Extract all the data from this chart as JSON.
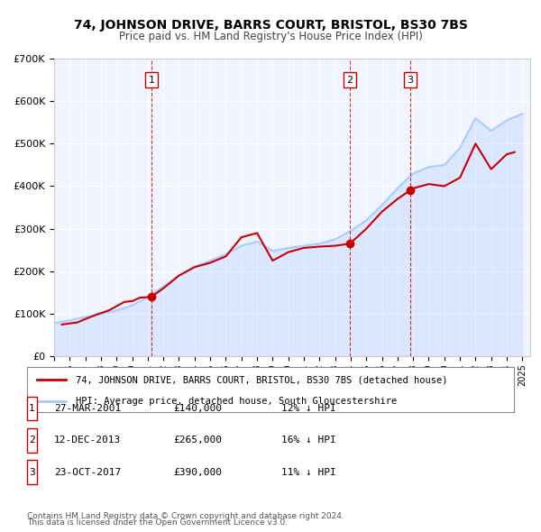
{
  "title": "74, JOHNSON DRIVE, BARRS COURT, BRISTOL, BS30 7BS",
  "subtitle": "Price paid vs. HM Land Registry's House Price Index (HPI)",
  "property_label": "74, JOHNSON DRIVE, BARRS COURT, BRISTOL, BS30 7BS (detached house)",
  "hpi_label": "HPI: Average price, detached house, South Gloucestershire",
  "footer1": "Contains HM Land Registry data © Crown copyright and database right 2024.",
  "footer2": "This data is licensed under the Open Government Licence v3.0.",
  "transactions": [
    {
      "num": 1,
      "date": "27-MAR-2001",
      "price": 140000,
      "diff": "12% ↓ HPI",
      "year": 2001.23
    },
    {
      "num": 2,
      "date": "12-DEC-2013",
      "price": 265000,
      "diff": "16% ↓ HPI",
      "year": 2013.95
    },
    {
      "num": 3,
      "date": "23-OCT-2017",
      "price": 390000,
      "diff": "11% ↓ HPI",
      "year": 2017.8
    }
  ],
  "price_color": "#cc0000",
  "hpi_color": "#aaccff",
  "vline_color": "#cc0000",
  "bg_color": "#f0f4ff",
  "plot_bg": "#ffffff",
  "ylim": [
    0,
    700000
  ],
  "xlim_start": 1995.0,
  "xlim_end": 2025.5,
  "hpi_data_years": [
    1995,
    1996,
    1997,
    1998,
    1999,
    2000,
    2001,
    2002,
    2003,
    2004,
    2005,
    2006,
    2007,
    2008,
    2009,
    2010,
    2011,
    2012,
    2013,
    2014,
    2015,
    2016,
    2017,
    2018,
    2019,
    2020,
    2021,
    2022,
    2023,
    2024,
    2025
  ],
  "hpi_data_values": [
    78000,
    85000,
    93000,
    100000,
    108000,
    120000,
    140000,
    165000,
    190000,
    210000,
    225000,
    240000,
    260000,
    270000,
    248000,
    255000,
    260000,
    265000,
    275000,
    295000,
    320000,
    355000,
    395000,
    430000,
    445000,
    450000,
    490000,
    560000,
    530000,
    555000,
    570000
  ],
  "price_data_years": [
    1995.5,
    1996.5,
    1997,
    1997.5,
    1998,
    1998.5,
    1999,
    1999.5,
    2000,
    2000.5,
    2001.23,
    2002,
    2003,
    2004,
    2005,
    2006,
    2007,
    2008,
    2009,
    2010,
    2011,
    2012,
    2013,
    2013.95,
    2015,
    2016,
    2017,
    2017.8,
    2018,
    2019,
    2020,
    2021,
    2022,
    2023,
    2024,
    2024.5
  ],
  "price_data_values": [
    75000,
    80000,
    88000,
    95000,
    102000,
    108000,
    118000,
    128000,
    130000,
    138000,
    140000,
    160000,
    190000,
    210000,
    220000,
    235000,
    280000,
    290000,
    225000,
    245000,
    255000,
    258000,
    260000,
    265000,
    300000,
    340000,
    370000,
    390000,
    395000,
    405000,
    400000,
    420000,
    500000,
    440000,
    475000,
    480000
  ]
}
